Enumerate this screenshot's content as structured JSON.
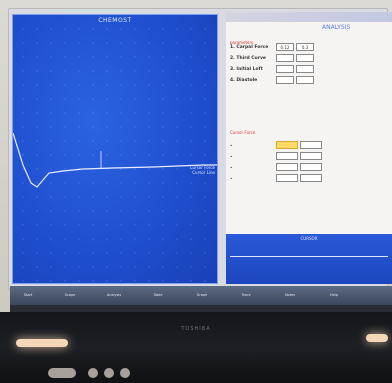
{
  "left_window": {
    "title": "CHEMOST",
    "trace_label_1": "Cursor Force",
    "trace_label_2": "Cursor Line"
  },
  "right_window": {
    "title": "ANALYSIS",
    "section_a_label": "parameters",
    "rows": [
      {
        "label": "1. Carpal Force",
        "cell_1": "0.12",
        "cell_2": "0.3"
      },
      {
        "label": "2. Third Curve",
        "cell_1": "",
        "cell_2": ""
      },
      {
        "label": "3. Initial Loft",
        "cell_1": "",
        "cell_2": ""
      },
      {
        "label": "4. Diastole",
        "cell_1": "",
        "cell_2": ""
      }
    ],
    "section_b_label": "Cursor Force",
    "band_title": "CURSOR"
  },
  "taskbar": {
    "items": [
      "Start",
      "Scope",
      "Analysis",
      "Table",
      "Graph",
      "Trace",
      "Notes",
      "Help"
    ]
  },
  "bezel": {
    "brand": "TOSHIBA"
  },
  "colors": {
    "chart_bg": "#1f4fcf",
    "trace": "#e8eeff",
    "highlight_cell": "#ffd96a"
  }
}
